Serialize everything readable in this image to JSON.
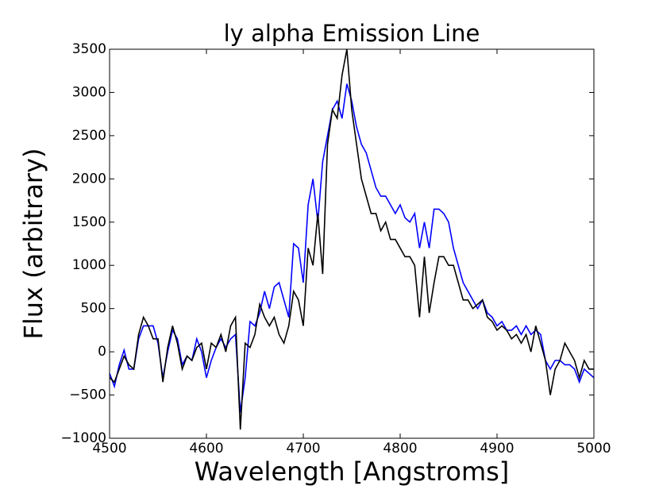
{
  "chart_data": {
    "type": "line",
    "title": "ly alpha Emission Line",
    "x_label": "Wavelength [Angstroms]",
    "y_label": "Flux (arbitrary)",
    "xlim": [
      4500,
      5000
    ],
    "ylim": [
      -1000,
      3500
    ],
    "xticks": [
      4500,
      4600,
      4700,
      4800,
      4900,
      5000
    ],
    "yticks": [
      {
        "value": -1000,
        "label": "−1000"
      },
      {
        "value": -500,
        "label": "−500"
      },
      0,
      500,
      1000,
      1500,
      2000,
      2500,
      3000,
      3500
    ],
    "grid": false,
    "x": [
      4500,
      4505,
      4510,
      4515,
      4520,
      4525,
      4530,
      4535,
      4540,
      4545,
      4550,
      4555,
      4560,
      4565,
      4570,
      4575,
      4580,
      4585,
      4590,
      4595,
      4600,
      4605,
      4610,
      4615,
      4620,
      4625,
      4630,
      4635,
      4640,
      4645,
      4650,
      4655,
      4660,
      4665,
      4670,
      4675,
      4680,
      4685,
      4690,
      4695,
      4700,
      4705,
      4710,
      4715,
      4720,
      4725,
      4730,
      4735,
      4740,
      4745,
      4750,
      4755,
      4760,
      4765,
      4770,
      4775,
      4780,
      4785,
      4790,
      4795,
      4800,
      4805,
      4810,
      4815,
      4820,
      4825,
      4830,
      4835,
      4840,
      4845,
      4850,
      4855,
      4860,
      4865,
      4870,
      4875,
      4880,
      4885,
      4890,
      4895,
      4900,
      4905,
      4910,
      4915,
      4920,
      4925,
      4930,
      4935,
      4940,
      4945,
      4950,
      4955,
      4960,
      4965,
      4970,
      4975,
      4980,
      4985,
      4990,
      4995,
      5000
    ],
    "series": [
      {
        "color": "#0000ff",
        "values": [
          -250,
          -400,
          -150,
          20,
          -200,
          -200,
          150,
          300,
          300,
          300,
          100,
          -300,
          0,
          250,
          150,
          -150,
          -50,
          -100,
          150,
          0,
          -300,
          -100,
          50,
          150,
          50,
          150,
          200,
          -700,
          -300,
          350,
          300,
          450,
          700,
          500,
          750,
          800,
          600,
          400,
          1250,
          1200,
          800,
          1700,
          2000,
          1500,
          2200,
          2500,
          2800,
          2900,
          2700,
          3100,
          2900,
          2600,
          2400,
          2300,
          2100,
          1900,
          1800,
          1800,
          1700,
          1600,
          1700,
          1550,
          1500,
          1600,
          1200,
          1500,
          1200,
          1650,
          1650,
          1600,
          1500,
          1200,
          1000,
          800,
          700,
          600,
          500,
          600,
          450,
          400,
          300,
          350,
          250,
          250,
          300,
          200,
          300,
          200,
          250,
          200,
          -100,
          -200,
          -100,
          -100,
          -150,
          -150,
          -200,
          -350,
          -200,
          -250,
          -300
        ]
      },
      {
        "color": "#000000",
        "values": [
          -300,
          -350,
          -200,
          -50,
          -150,
          -200,
          200,
          400,
          300,
          150,
          150,
          -350,
          50,
          300,
          100,
          -200,
          -50,
          -100,
          50,
          100,
          -200,
          100,
          50,
          200,
          0,
          300,
          400,
          -900,
          100,
          50,
          200,
          550,
          400,
          300,
          400,
          200,
          100,
          300,
          700,
          600,
          300,
          1200,
          1000,
          1600,
          900,
          2400,
          2800,
          2700,
          3200,
          3500,
          2800,
          2400,
          2000,
          1800,
          1600,
          1600,
          1400,
          1500,
          1300,
          1300,
          1200,
          1100,
          1100,
          1000,
          400,
          1100,
          450,
          800,
          1100,
          1100,
          1000,
          1000,
          800,
          600,
          600,
          500,
          550,
          600,
          400,
          350,
          250,
          300,
          250,
          150,
          200,
          100,
          200,
          0,
          300,
          100,
          -100,
          -500,
          -200,
          -100,
          100,
          0,
          -100,
          -300,
          -100,
          -200,
          -200
        ]
      }
    ]
  }
}
